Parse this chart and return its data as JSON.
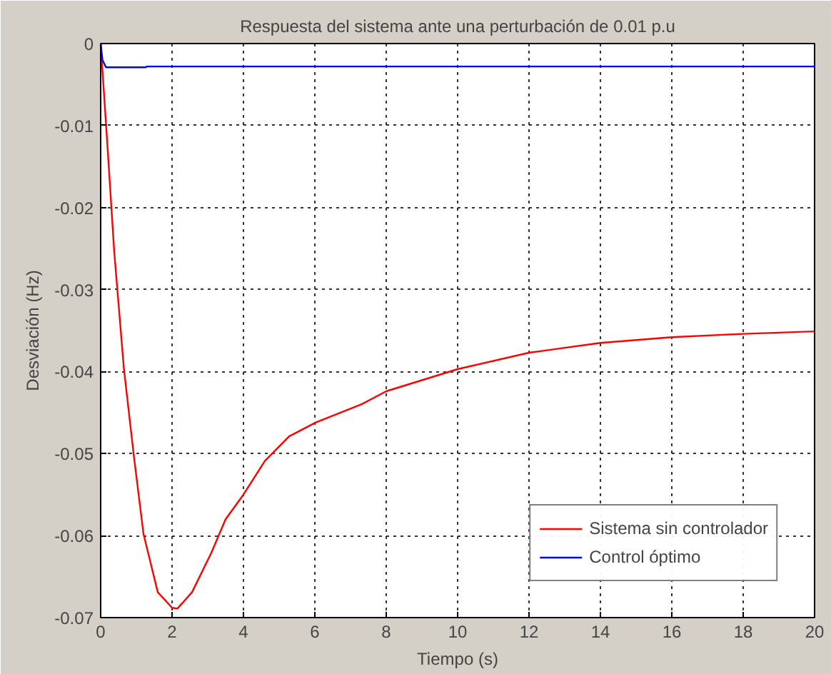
{
  "chart_data": {
    "type": "line",
    "title": "Respuesta del sistema ante una perturbación de 0.01 p.u",
    "xlabel": "Tiempo (s)",
    "ylabel": "Desviación (Hz)",
    "xlim": [
      0,
      20
    ],
    "ylim": [
      -0.07,
      0
    ],
    "xticks": [
      0,
      2,
      4,
      6,
      8,
      10,
      12,
      14,
      16,
      18,
      20
    ],
    "yticks": [
      -0.07,
      -0.06,
      -0.05,
      -0.04,
      -0.03,
      -0.02,
      -0.01,
      0
    ],
    "grid": true,
    "legend": "bottom right",
    "line_style": "solid",
    "series": [
      {
        "name": "Sistema sin controlador",
        "color": "#ff0000",
        "x": [
          0,
          0.18,
          0.38,
          0.65,
          0.93,
          1.2,
          1.6,
          2.0,
          2.15,
          2.56,
          3.1,
          3.5,
          4.0,
          4.6,
          5.28,
          6.03,
          7.3,
          8,
          10,
          12,
          14,
          16,
          18,
          20
        ],
        "values": [
          0,
          -0.0118,
          -0.0254,
          -0.0396,
          -0.0503,
          -0.0598,
          -0.0669,
          -0.0688,
          -0.0689,
          -0.0669,
          -0.0621,
          -0.058,
          -0.055,
          -0.0509,
          -0.0479,
          -0.0462,
          -0.044,
          -0.0424,
          -0.0397,
          -0.0377,
          -0.0365,
          -0.0358,
          -0.0354,
          -0.0351
        ]
      },
      {
        "name": "Control óptimo",
        "color": "#0000ff",
        "x": [
          0,
          0.05,
          0.15,
          1.25,
          1.3,
          20
        ],
        "values": [
          0,
          -0.002,
          -0.0029,
          -0.0029,
          -0.0028,
          -0.0028
        ]
      }
    ]
  }
}
